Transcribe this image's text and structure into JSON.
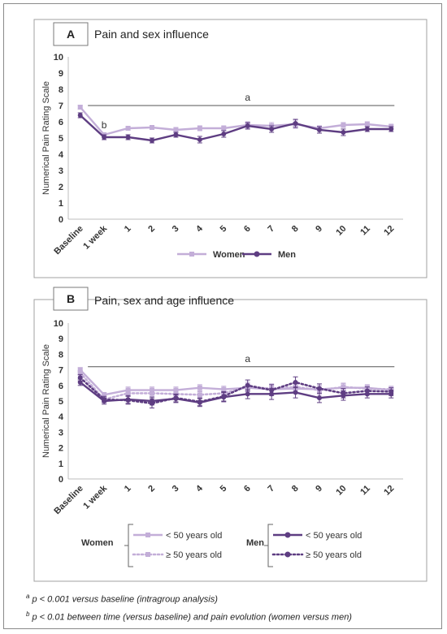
{
  "chart_data": [
    {
      "type": "line",
      "panel_letter": "A",
      "title": "Pain and sex influence",
      "ylabel": "Numerical Pain Rating Scale",
      "ylim": [
        0,
        10
      ],
      "yticks": [
        0,
        1,
        2,
        3,
        4,
        5,
        6,
        7,
        8,
        9,
        10
      ],
      "categories": [
        "Baseline",
        "1 week",
        "1",
        "2",
        "3",
        "4",
        "5",
        "6",
        "7",
        "8",
        "9",
        "10",
        "11",
        "12"
      ],
      "annotations": [
        {
          "text": "a",
          "type": "bracket",
          "from_index": 1,
          "to_index": 13,
          "y": 7.0
        },
        {
          "text": "b",
          "type": "label",
          "index": 1,
          "y": 5.6
        }
      ],
      "legend_position": "bottom",
      "series": [
        {
          "name": "Women",
          "color": "#c3aed8",
          "dash": "solid",
          "marker": "square",
          "values": [
            6.9,
            5.2,
            5.6,
            5.65,
            5.5,
            5.6,
            5.6,
            5.8,
            5.75,
            5.85,
            5.6,
            5.8,
            5.85,
            5.7
          ],
          "errors": [
            0.12,
            0.12,
            0.12,
            0.12,
            0.15,
            0.15,
            0.15,
            0.2,
            0.2,
            0.25,
            0.15,
            0.15,
            0.15,
            0.15
          ]
        },
        {
          "name": "Men",
          "color": "#5e3d82",
          "dash": "solid",
          "marker": "circle",
          "values": [
            6.4,
            5.05,
            5.05,
            4.85,
            5.2,
            4.9,
            5.25,
            5.75,
            5.55,
            5.9,
            5.5,
            5.35,
            5.55,
            5.55
          ],
          "errors": [
            0.15,
            0.15,
            0.15,
            0.15,
            0.15,
            0.2,
            0.2,
            0.2,
            0.2,
            0.25,
            0.2,
            0.2,
            0.15,
            0.15
          ]
        }
      ]
    },
    {
      "type": "line",
      "panel_letter": "B",
      "title": "Pain, sex and age influence",
      "ylabel": "Numerical Pain Rating Scale",
      "ylim": [
        0,
        10
      ],
      "yticks": [
        0,
        1,
        2,
        3,
        4,
        5,
        6,
        7,
        8,
        9,
        10
      ],
      "categories": [
        "Baseline",
        "1 week",
        "1",
        "2",
        "3",
        "4",
        "5",
        "6",
        "7",
        "8",
        "9",
        "10",
        "11",
        "12"
      ],
      "annotations": [
        {
          "text": "a",
          "type": "bracket",
          "from_index": 1,
          "to_index": 13,
          "y": 7.2
        }
      ],
      "legend_position": "bottom",
      "legend_groups": [
        {
          "label": "Women",
          "series": [
            "< 50 years old",
            "≥ 50 years old"
          ]
        },
        {
          "label": "Men",
          "series": [
            "< 50 years old",
            "≥ 50 years old"
          ]
        }
      ],
      "series": [
        {
          "name": "< 50 years old",
          "group": "Women",
          "color": "#c3aed8",
          "dash": "solid",
          "marker": "square",
          "values": [
            7.0,
            5.4,
            5.7,
            5.7,
            5.7,
            5.85,
            5.75,
            5.85,
            5.75,
            5.8,
            5.75,
            5.85,
            5.85,
            5.7
          ],
          "errors": [
            0.15,
            0.15,
            0.2,
            0.2,
            0.2,
            0.2,
            0.2,
            0.25,
            0.25,
            0.3,
            0.25,
            0.25,
            0.2,
            0.2
          ]
        },
        {
          "name": "≥ 50 years old",
          "group": "Women",
          "color": "#c3aed8",
          "dash": "dotted",
          "marker": "square",
          "values": [
            6.8,
            5.1,
            5.5,
            5.5,
            5.45,
            5.4,
            5.5,
            5.9,
            5.8,
            5.9,
            5.7,
            5.9,
            5.8,
            5.75
          ],
          "errors": [
            0.15,
            0.15,
            0.2,
            0.2,
            0.2,
            0.2,
            0.25,
            0.3,
            0.3,
            0.3,
            0.3,
            0.25,
            0.2,
            0.2
          ]
        },
        {
          "name": "< 50 years old",
          "group": "Men",
          "color": "#5e3d82",
          "dash": "solid",
          "marker": "circle",
          "values": [
            6.2,
            5.0,
            5.1,
            5.0,
            5.15,
            4.9,
            5.25,
            5.45,
            5.45,
            5.55,
            5.2,
            5.35,
            5.45,
            5.45
          ],
          "errors": [
            0.2,
            0.2,
            0.25,
            0.25,
            0.25,
            0.25,
            0.3,
            0.3,
            0.35,
            0.35,
            0.3,
            0.3,
            0.25,
            0.25
          ]
        },
        {
          "name": "≥ 50 years old",
          "group": "Men",
          "color": "#5e3d82",
          "dash": "dotted",
          "marker": "circle",
          "values": [
            6.5,
            5.1,
            5.05,
            4.85,
            5.2,
            4.95,
            5.3,
            6.0,
            5.7,
            6.2,
            5.8,
            5.5,
            5.65,
            5.6
          ],
          "errors": [
            0.2,
            0.2,
            0.25,
            0.3,
            0.25,
            0.25,
            0.3,
            0.35,
            0.35,
            0.35,
            0.3,
            0.3,
            0.25,
            0.25
          ]
        }
      ]
    }
  ],
  "footnotes": [
    {
      "sup": "a",
      "text": " p < 0.001 versus baseline (intragroup analysis)"
    },
    {
      "sup": "b",
      "text": " p < 0.01 between time (versus baseline) and pain evolution (women versus men)"
    }
  ]
}
